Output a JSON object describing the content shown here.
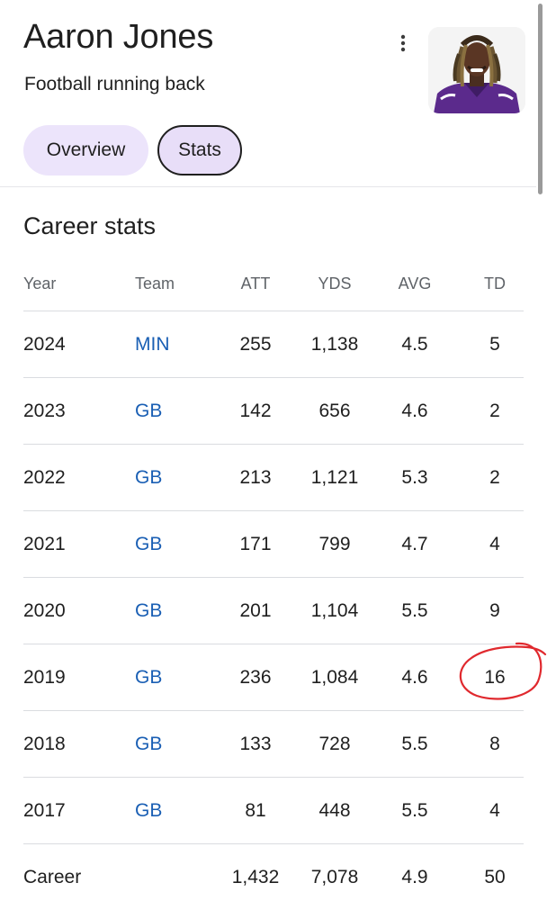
{
  "header": {
    "name": "Aaron Jones",
    "subtitle": "Football running back",
    "more_icon": "more-vert-icon"
  },
  "tabs": [
    {
      "label": "Overview",
      "selected": false
    },
    {
      "label": "Stats",
      "selected": true
    }
  ],
  "section_title": "Career stats",
  "table": {
    "columns": [
      "Year",
      "Team",
      "ATT",
      "YDS",
      "AVG",
      "TD"
    ],
    "rows": [
      {
        "year": "2024",
        "team": "MIN",
        "att": "255",
        "yds": "1,138",
        "avg": "4.5",
        "td": "5"
      },
      {
        "year": "2023",
        "team": "GB",
        "att": "142",
        "yds": "656",
        "avg": "4.6",
        "td": "2"
      },
      {
        "year": "2022",
        "team": "GB",
        "att": "213",
        "yds": "1,121",
        "avg": "5.3",
        "td": "2"
      },
      {
        "year": "2021",
        "team": "GB",
        "att": "171",
        "yds": "799",
        "avg": "4.7",
        "td": "4"
      },
      {
        "year": "2020",
        "team": "GB",
        "att": "201",
        "yds": "1,104",
        "avg": "5.5",
        "td": "9"
      },
      {
        "year": "2019",
        "team": "GB",
        "att": "236",
        "yds": "1,084",
        "avg": "4.6",
        "td": "16"
      },
      {
        "year": "2018",
        "team": "GB",
        "att": "133",
        "yds": "728",
        "avg": "5.5",
        "td": "8"
      },
      {
        "year": "2017",
        "team": "GB",
        "att": "81",
        "yds": "448",
        "avg": "5.5",
        "td": "4"
      }
    ],
    "total": {
      "year": "Career",
      "team": "",
      "att": "1,432",
      "yds": "7,078",
      "avg": "4.9",
      "td": "50"
    }
  },
  "annotation": {
    "type": "hand-drawn red circle around 2019 TD value",
    "color": "#e0292e"
  },
  "colors": {
    "tab_bg": "#ece4fb",
    "link": "#1a5fb4",
    "divider": "#dadce0"
  }
}
